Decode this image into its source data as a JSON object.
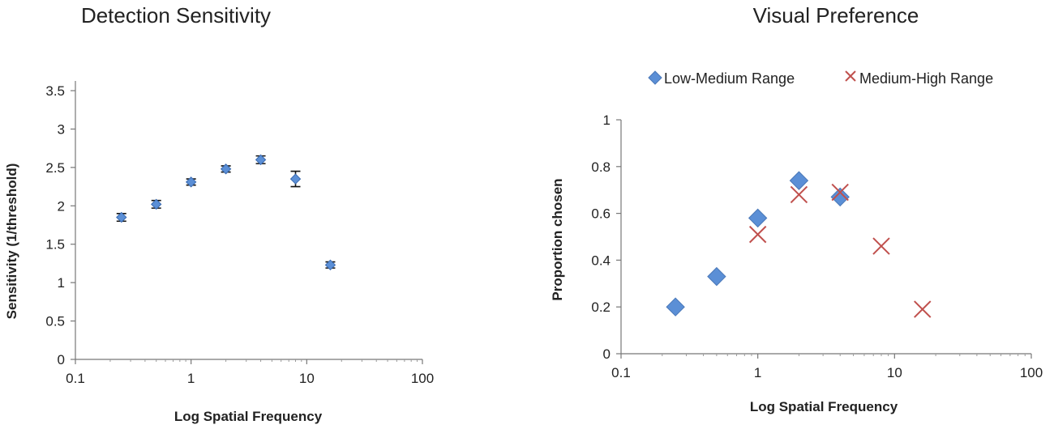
{
  "chart_data": [
    {
      "type": "scatter",
      "title": "Detection Sensitivity",
      "xlabel": "Log Spatial Frequency",
      "ylabel": "Sensitivity (1/threshold)",
      "xscale": "log",
      "xlim": [
        0.1,
        100
      ],
      "ylim": [
        0,
        3.5
      ],
      "xticks": [
        "0.1",
        "1",
        "10",
        "100"
      ],
      "yticks": [
        "0",
        "0.5",
        "1",
        "1.5",
        "2",
        "2.5",
        "3",
        "3.5"
      ],
      "grid": false,
      "legend": null,
      "series": [
        {
          "name": "Sensitivity",
          "color": "#5b8fd6",
          "points": [
            {
              "x": 0.25,
              "y": 1.85,
              "err": 0.05
            },
            {
              "x": 0.5,
              "y": 2.02,
              "err": 0.05
            },
            {
              "x": 1,
              "y": 2.31,
              "err": 0.04
            },
            {
              "x": 2,
              "y": 2.48,
              "err": 0.04
            },
            {
              "x": 4,
              "y": 2.6,
              "err": 0.05
            },
            {
              "x": 8,
              "y": 2.35,
              "err": 0.1
            },
            {
              "x": 16,
              "y": 1.23,
              "err": 0.04
            }
          ]
        }
      ]
    },
    {
      "type": "scatter",
      "title": "Visual Preference",
      "xlabel": "Log Spatial Frequency",
      "ylabel": "Proportion chosen",
      "xscale": "log",
      "xlim": [
        0.1,
        100
      ],
      "ylim": [
        0,
        1
      ],
      "xticks": [
        "0.1",
        "1",
        "10",
        "100"
      ],
      "yticks": [
        "0",
        "0.2",
        "0.4",
        "0.6",
        "0.8",
        "1"
      ],
      "grid": false,
      "legend": "top",
      "series": [
        {
          "name": "Low-Medium Range",
          "marker": "diamond",
          "color": "#5b8fd6",
          "points": [
            {
              "x": 0.25,
              "y": 0.2
            },
            {
              "x": 0.5,
              "y": 0.33
            },
            {
              "x": 1,
              "y": 0.58
            },
            {
              "x": 2,
              "y": 0.74
            },
            {
              "x": 4,
              "y": 0.67
            }
          ]
        },
        {
          "name": "Medium-High Range",
          "marker": "x",
          "color": "#c0504d",
          "points": [
            {
              "x": 1,
              "y": 0.51
            },
            {
              "x": 2,
              "y": 0.68
            },
            {
              "x": 4,
              "y": 0.69
            },
            {
              "x": 8,
              "y": 0.46
            },
            {
              "x": 16,
              "y": 0.19
            }
          ]
        }
      ]
    }
  ]
}
